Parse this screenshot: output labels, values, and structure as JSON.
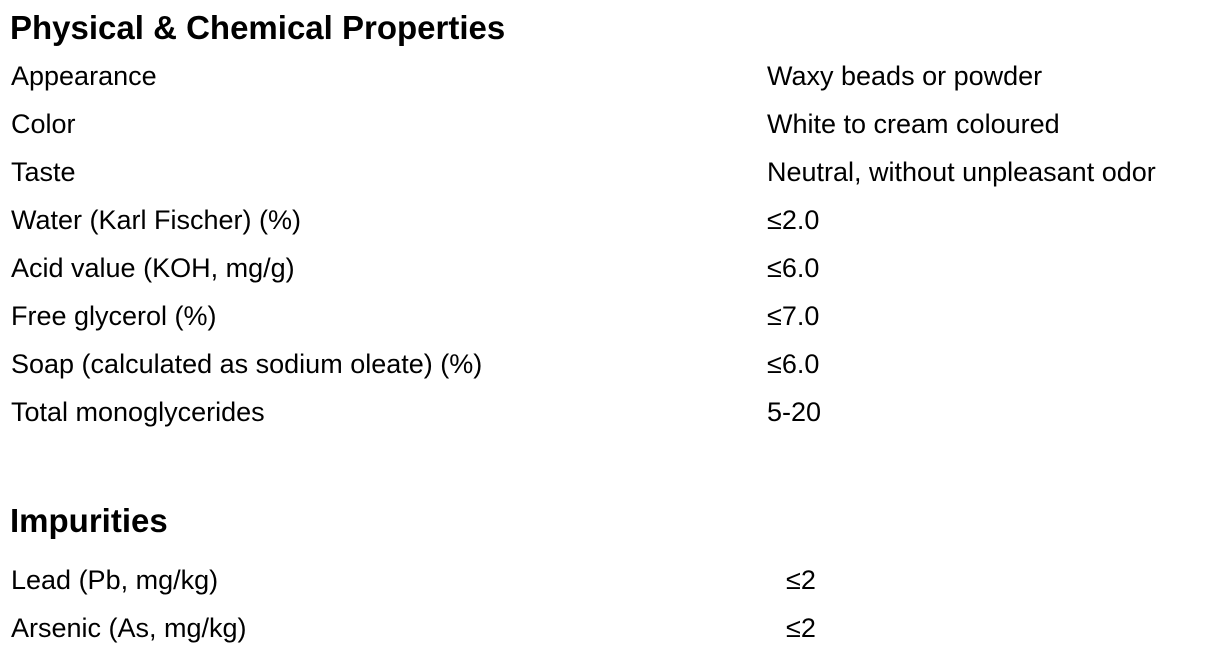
{
  "physical": {
    "title": "Physical & Chemical Properties",
    "rows": [
      {
        "label": "Appearance",
        "value": "Waxy beads or powder"
      },
      {
        "label": "Color",
        "value": "White to cream coloured"
      },
      {
        "label": "Taste",
        "value": "Neutral, without unpleasant odor"
      },
      {
        "label": "Water (Karl Fischer) (%)",
        "value": "≤2.0"
      },
      {
        "label": "Acid value (KOH, mg/g)",
        "value": "≤6.0"
      },
      {
        "label": "Free glycerol (%)",
        "value": "≤7.0"
      },
      {
        "label": "Soap (calculated as sodium oleate) (%)",
        "value": "≤6.0"
      },
      {
        "label": "Total monoglycerides",
        "value": "5-20"
      }
    ]
  },
  "impurities": {
    "title": "Impurities",
    "rows": [
      {
        "label": "Lead (Pb, mg/kg)",
        "value": "≤2"
      },
      {
        "label": "Arsenic (As, mg/kg)",
        "value": "≤2"
      }
    ]
  }
}
